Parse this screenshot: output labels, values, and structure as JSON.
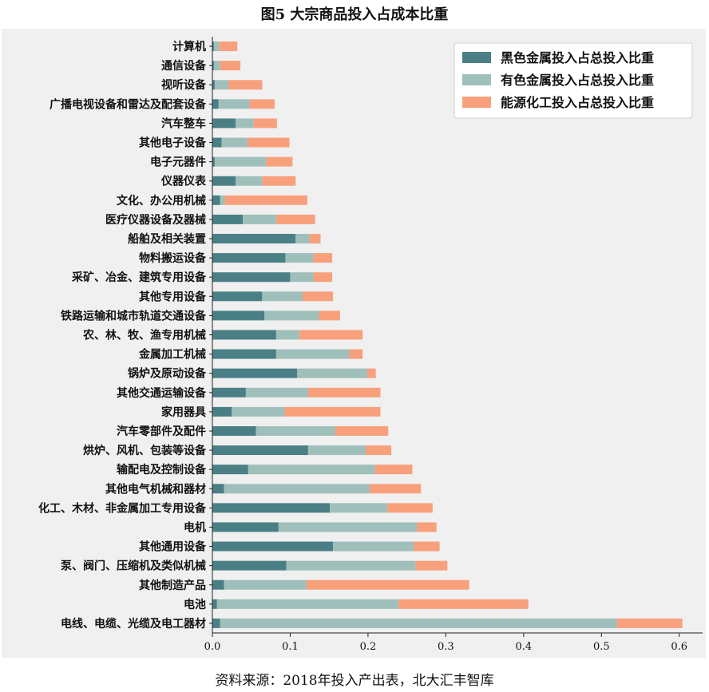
{
  "title": "图5 大宗商品投入占成本比重",
  "source_note": "资料来源：2018年投入产出表，北大汇丰智库",
  "chart_data": {
    "type": "bar",
    "orientation": "horizontal",
    "stacked": true,
    "title": "图5 大宗商品投入占成本比重",
    "xlim": [
      0,
      0.63
    ],
    "x_ticks": [
      0.0,
      0.1,
      0.2,
      0.3,
      0.4,
      0.5,
      0.6
    ],
    "x_tick_labels": [
      "0.0",
      "0.1",
      "0.2",
      "0.3",
      "0.4",
      "0.5",
      "0.6"
    ],
    "legend_position": "top-right",
    "grid": false,
    "categories": [
      "计算机",
      "通信设备",
      "视听设备",
      "广播电视设备和雷达及配套设备",
      "汽车整车",
      "其他电子设备",
      "电子元器件",
      "仪器仪表",
      "文化、办公用机械",
      "医疗仪器设备及器械",
      "船舶及相关装置",
      "物料搬运设备",
      "采矿、冶金、建筑专用设备",
      "其他专用设备",
      "铁路运输和城市轨道交通设备",
      "农、林、牧、渔专用机械",
      "金属加工机械",
      "锅炉及原动设备",
      "其他交通运输设备",
      "家用器具",
      "汽车零部件及配件",
      "烘炉、风机、包装等设备",
      "输配电及控制设备",
      "其他电气机械和器材",
      "化工、木材、非金属加工专用设备",
      "电机",
      "其他通用设备",
      "泵、阀门、压缩机及类似机械",
      "其他制造产品",
      "电池",
      "电线、电缆、光缆及电工器材"
    ],
    "series": [
      {
        "name": "黑色金属投入占总投入比重",
        "color": "#4a8085",
        "values": [
          0.002,
          0.002,
          0.003,
          0.008,
          0.03,
          0.012,
          0.003,
          0.03,
          0.01,
          0.039,
          0.107,
          0.094,
          0.1,
          0.064,
          0.067,
          0.082,
          0.082,
          0.109,
          0.043,
          0.025,
          0.056,
          0.123,
          0.046,
          0.015,
          0.151,
          0.085,
          0.155,
          0.095,
          0.015,
          0.006,
          0.01
        ]
      },
      {
        "name": "有色金属投入占总投入比重",
        "color": "#9fbfba",
        "values": [
          0.007,
          0.008,
          0.018,
          0.04,
          0.023,
          0.033,
          0.066,
          0.034,
          0.006,
          0.043,
          0.018,
          0.036,
          0.03,
          0.052,
          0.07,
          0.03,
          0.094,
          0.09,
          0.08,
          0.068,
          0.102,
          0.074,
          0.163,
          0.187,
          0.074,
          0.178,
          0.104,
          0.166,
          0.106,
          0.233,
          0.51
        ]
      },
      {
        "name": "能源化工投入占总投入比重",
        "color": "#f8a07c",
        "values": [
          0.023,
          0.026,
          0.043,
          0.032,
          0.03,
          0.054,
          0.034,
          0.043,
          0.106,
          0.05,
          0.014,
          0.024,
          0.024,
          0.039,
          0.027,
          0.081,
          0.017,
          0.011,
          0.093,
          0.123,
          0.068,
          0.033,
          0.048,
          0.066,
          0.058,
          0.025,
          0.033,
          0.041,
          0.209,
          0.167,
          0.084
        ]
      }
    ]
  }
}
